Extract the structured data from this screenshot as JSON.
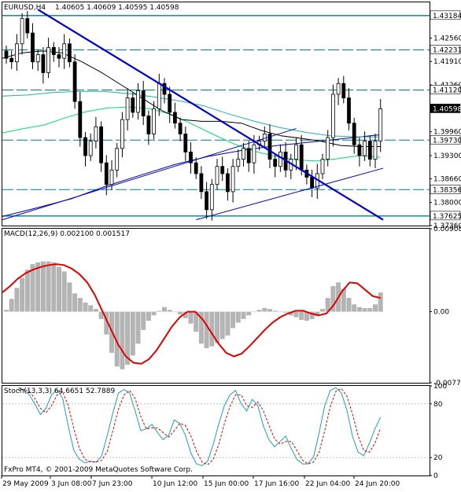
{
  "header": {
    "symbol": "EURUSD,H4",
    "ohlc": "1.40605 1.40609 1.40595 1.40598"
  },
  "macd_header": "MACD(12,26,9) 0.002100 0.001517",
  "stoch_header": "Stoch(13,3,3) 64.6651 52.7889",
  "copyright": "FxPro MT4, © 2001-2009 MetaQuotes Software Corp.",
  "colors": {
    "candle": "#000000",
    "hline": "#008080",
    "trend_thick": "#0000cd",
    "trend_thin": "#0000cd",
    "ma_black": "#000000",
    "ma_teal": "#20b2aa",
    "ma_lime": "#00e070",
    "ma_navy": "#0000b0",
    "macd_hist": "#b4b4b4",
    "macd_signal": "#e00000",
    "stoch_main": "#20a0a8",
    "stoch_signal": "#e00000"
  },
  "chart_data": [
    {
      "type": "candlestick",
      "title": "EURUSD,H4",
      "ylim": [
        1.3736,
        1.4355
      ],
      "y_ticks": [
        "1.42560",
        "1.41910",
        "1.41260",
        "1.39960",
        "1.39300",
        "1.38660",
        "1.38000",
        "1.37360"
      ],
      "price_tags": [
        "1.43184",
        "1.42231",
        "1.41120",
        "1.40598",
        "1.39730",
        "1.38356",
        "1.37625"
      ],
      "horizontal_levels": [
        1.43184,
        1.42231,
        1.4112,
        1.3973,
        1.38356,
        1.37625
      ],
      "x_labels": [
        "29 May 2009",
        "3 Jun 08:00",
        "7 Jun 23:00",
        "10 Jun 12:00",
        "15 Jun 00:00",
        "17 Jun 16:00",
        "22 Jun 04:00",
        "24 Jun 20:00"
      ],
      "bar_count": 72,
      "close_path": [
        1.42,
        1.419,
        1.424,
        1.431,
        1.427,
        1.419,
        1.421,
        1.416,
        1.423,
        1.421,
        1.42,
        1.424,
        1.419,
        1.408,
        1.398,
        1.393,
        1.397,
        1.401,
        1.391,
        1.385,
        1.389,
        1.395,
        1.403,
        1.409,
        1.405,
        1.411,
        1.404,
        1.399,
        1.406,
        1.413,
        1.41,
        1.405,
        1.402,
        1.399,
        1.394,
        1.391,
        1.388,
        1.383,
        1.378,
        1.385,
        1.39,
        1.388,
        1.383,
        1.39,
        1.392,
        1.395,
        1.391,
        1.396,
        1.397,
        1.399,
        1.392,
        1.39,
        1.394,
        1.389,
        1.392,
        1.396,
        1.389,
        1.387,
        1.384,
        1.388,
        1.392,
        1.398,
        1.41,
        1.413,
        1.409,
        1.402,
        1.396,
        1.393,
        1.397,
        1.392,
        1.397,
        1.406
      ],
      "ma_black": [
        1.42,
        1.4215,
        1.422,
        1.4215,
        1.419,
        1.416,
        1.4125,
        1.409,
        1.4055,
        1.403,
        1.4025,
        1.4025,
        1.402,
        1.4,
        1.3985,
        1.3978,
        1.397,
        1.3958,
        1.3955,
        1.3955
      ],
      "ma_teal": [
        1.4095,
        1.4098,
        1.4105,
        1.4108,
        1.4108,
        1.4102,
        1.4093,
        1.4082,
        1.4068,
        1.4045,
        1.4025,
        1.4008,
        1.3995,
        1.3985,
        1.3982,
        1.3982
      ],
      "ma_lime": [
        1.3993,
        1.4005,
        1.4015,
        1.4035,
        1.4052,
        1.4062,
        1.4065,
        1.406,
        1.4045,
        1.4018,
        1.399,
        1.3963,
        1.3942,
        1.3928,
        1.3918,
        1.3915,
        1.3922,
        1.393,
        1.3925
      ],
      "ma_navy": [
        1.3761,
        1.3785,
        1.381,
        1.3845,
        1.3875,
        1.3905,
        1.3928,
        1.3945,
        1.3958,
        1.3968,
        1.3978,
        1.3988
      ],
      "trendlines": [
        {
          "style": "thick",
          "from": [
            6,
            1.4335
          ],
          "to": [
            71.5,
            1.3752
          ]
        },
        {
          "style": "thin",
          "from": [
            36,
            1.3752
          ],
          "to": [
            71.5,
            1.3895
          ]
        },
        {
          "style": "thin",
          "from": [
            0,
            1.3752
          ],
          "to": [
            55,
            1.4005
          ]
        }
      ]
    },
    {
      "type": "bar",
      "title": "MACD(12,26,9)",
      "ylim": [
        -0.00778,
        0.00908
      ],
      "y_ticks": [
        "0.00908",
        "0.00",
        "-0.00778"
      ],
      "main": 0.0021,
      "signal": 0.001517,
      "histogram": [
        0.0002,
        0.0014,
        0.0026,
        0.0037,
        0.0046,
        0.0052,
        0.0054,
        0.0055,
        0.0055,
        0.0054,
        0.0049,
        0.0044,
        0.0032,
        0.002,
        0.0015,
        0.001,
        0.0007,
        0.0003,
        -0.0008,
        -0.0025,
        -0.0045,
        -0.006,
        -0.0063,
        -0.0058,
        -0.0048,
        -0.0035,
        -0.002,
        -0.001,
        -0.0004,
        0.0001,
        0.0005,
        0.0002,
        0.0,
        -0.0003,
        -0.0007,
        -0.0013,
        -0.0022,
        -0.0035,
        -0.004,
        -0.0038,
        -0.0034,
        -0.003,
        -0.0026,
        -0.0018,
        -0.0012,
        -0.0008,
        -0.0004,
        0.0,
        0.0002,
        0.0004,
        0.0003,
        0.0001,
        0.0,
        -0.0001,
        -0.0004,
        -0.0006,
        -0.0009,
        -0.001,
        -0.0008,
        -0.0005,
        0.0003,
        0.0015,
        0.0028,
        0.0032,
        0.0025,
        0.0015,
        0.0008,
        0.0005,
        0.0004,
        0.0004,
        0.0008,
        0.0021
      ],
      "signal_path": [
        0.0021,
        0.0028,
        0.0036,
        0.0042,
        0.0046,
        0.0049,
        0.0051,
        0.0052,
        0.0051,
        0.0047,
        0.0041,
        0.0032,
        0.0018,
        0.0,
        -0.0018,
        -0.0036,
        -0.0049,
        -0.0056,
        -0.0057,
        -0.0052,
        -0.0042,
        -0.0029,
        -0.0016,
        -0.0006,
        0.0,
        0.0,
        -0.0009,
        -0.0022,
        -0.0035,
        -0.0045,
        -0.0049,
        -0.0046,
        -0.0038,
        -0.0029,
        -0.002,
        -0.0012,
        -0.0006,
        -0.0002,
        0.0001,
        0.0001,
        -0.0002,
        -0.0004,
        -0.0002,
        0.0008,
        0.0022,
        0.0032,
        0.0031,
        0.0024,
        0.0017,
        0.0015
      ]
    },
    {
      "type": "line",
      "title": "Stoch(13,3,3)",
      "ylim": [
        0,
        100
      ],
      "y_ticks": [
        "100",
        "80",
        "20",
        "0"
      ],
      "main_value": 64.6651,
      "signal_value": 52.7889,
      "main_path": [
        98,
        96,
        90,
        80,
        68,
        75,
        90,
        96,
        86,
        55,
        28,
        18,
        14,
        16,
        15,
        22,
        45,
        70,
        92,
        96,
        92,
        72,
        50,
        52,
        57,
        48,
        40,
        45,
        62,
        58,
        45,
        25,
        13,
        11,
        16,
        35,
        58,
        78,
        90,
        95,
        80,
        72,
        85,
        78,
        55,
        40,
        32,
        38,
        44,
        30,
        18,
        13,
        13,
        21,
        48,
        78,
        95,
        98,
        92,
        72,
        43,
        26,
        22,
        36,
        52,
        65
      ],
      "signal_path": [
        95,
        96,
        94,
        86,
        75,
        70,
        78,
        90,
        93,
        78,
        52,
        30,
        18,
        15,
        15,
        17,
        27,
        50,
        74,
        90,
        95,
        86,
        66,
        52,
        53,
        53,
        48,
        43,
        50,
        58,
        56,
        44,
        27,
        15,
        12,
        18,
        35,
        58,
        77,
        90,
        90,
        78,
        76,
        82,
        72,
        56,
        41,
        35,
        38,
        38,
        28,
        17,
        13,
        15,
        26,
        50,
        77,
        94,
        97,
        88,
        68,
        44,
        28,
        26,
        36,
        53
      ]
    }
  ]
}
